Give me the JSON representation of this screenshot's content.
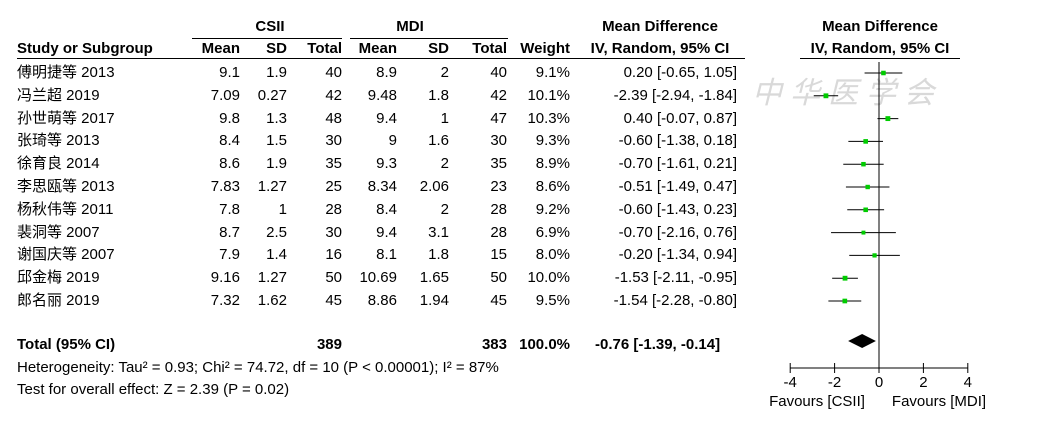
{
  "headers": {
    "group1": "CSII",
    "group2": "MDI",
    "study": "Study or Subgroup",
    "mean": "Mean",
    "sd": "SD",
    "total": "Total",
    "weight": "Weight",
    "md_top": "Mean Difference",
    "md_sub": "IV, Random, 95% CI",
    "plot_top": "Mean Difference",
    "plot_sub": "IV, Random, 95% CI"
  },
  "rows": [
    {
      "study": "傅明捷等 2013",
      "m1": "9.1",
      "sd1": "1.9",
      "n1": "40",
      "m2": "8.9",
      "sd2": "2",
      "n2": "40",
      "weight": "9.1%",
      "ci": "0.20 [-0.65, 1.05]"
    },
    {
      "study": "冯兰超 2019",
      "m1": "7.09",
      "sd1": "0.27",
      "n1": "42",
      "m2": "9.48",
      "sd2": "1.8",
      "n2": "42",
      "weight": "10.1%",
      "ci": "-2.39 [-2.94, -1.84]"
    },
    {
      "study": "孙世萌等 2017",
      "m1": "9.8",
      "sd1": "1.3",
      "n1": "48",
      "m2": "9.4",
      "sd2": "1",
      "n2": "47",
      "weight": "10.3%",
      "ci": "0.40 [-0.07, 0.87]"
    },
    {
      "study": "张琦等 2013",
      "m1": "8.4",
      "sd1": "1.5",
      "n1": "30",
      "m2": "9",
      "sd2": "1.6",
      "n2": "30",
      "weight": "9.3%",
      "ci": "-0.60 [-1.38, 0.18]"
    },
    {
      "study": "徐育良 2014",
      "m1": "8.6",
      "sd1": "1.9",
      "n1": "35",
      "m2": "9.3",
      "sd2": "2",
      "n2": "35",
      "weight": "8.9%",
      "ci": "-0.70 [-1.61, 0.21]"
    },
    {
      "study": "李思瓯等 2013",
      "m1": "7.83",
      "sd1": "1.27",
      "n1": "25",
      "m2": "8.34",
      "sd2": "2.06",
      "n2": "23",
      "weight": "8.6%",
      "ci": "-0.51 [-1.49, 0.47]"
    },
    {
      "study": "杨秋伟等 2011",
      "m1": "7.8",
      "sd1": "1",
      "n1": "28",
      "m2": "8.4",
      "sd2": "2",
      "n2": "28",
      "weight": "9.2%",
      "ci": "-0.60 [-1.43, 0.23]"
    },
    {
      "study": "裴洞等 2007",
      "m1": "8.7",
      "sd1": "2.5",
      "n1": "30",
      "m2": "9.4",
      "sd2": "3.1",
      "n2": "28",
      "weight": "6.9%",
      "ci": "-0.70 [-2.16, 0.76]"
    },
    {
      "study": "谢国庆等 2007",
      "m1": "7.9",
      "sd1": "1.4",
      "n1": "16",
      "m2": "8.1",
      "sd2": "1.8",
      "n2": "15",
      "weight": "8.0%",
      "ci": "-0.20 [-1.34, 0.94]"
    },
    {
      "study": "邱金梅 2019",
      "m1": "9.16",
      "sd1": "1.27",
      "n1": "50",
      "m2": "10.69",
      "sd2": "1.65",
      "n2": "50",
      "weight": "10.0%",
      "ci": "-1.53 [-2.11, -0.95]"
    },
    {
      "study": "郎名丽 2019",
      "m1": "7.32",
      "sd1": "1.62",
      "n1": "45",
      "m2": "8.86",
      "sd2": "1.94",
      "n2": "45",
      "weight": "9.5%",
      "ci": "-1.54 [-2.28, -0.80]"
    }
  ],
  "total": {
    "label": "Total (95% CI)",
    "n1": "389",
    "n2": "383",
    "weight": "100.0%",
    "ci": "-0.76 [-1.39, -0.14]"
  },
  "heterogeneity": "Heterogeneity: Tau² = 0.93; Chi² = 74.72, df = 10 (P < 0.00001); I² = 87%",
  "overall_effect": "Test for overall effect: Z = 2.39 (P = 0.02)",
  "favours_left": "Favours [CSII]",
  "favours_right": "Favours [MDI]",
  "watermark": "中华医学会",
  "colors": {
    "marker": "#00cc00",
    "diamond": "#000000",
    "line": "#000000"
  },
  "chart_data": {
    "type": "forest",
    "xlim": [
      -4,
      4
    ],
    "xticks": [
      -4,
      -2,
      0,
      2,
      4
    ],
    "xtick_labels": [
      "-4",
      "-2",
      "0",
      "2",
      "4"
    ],
    "studies": [
      {
        "name": "傅明捷等 2013",
        "md": 0.2,
        "lo": -0.65,
        "hi": 1.05,
        "weight": 9.1
      },
      {
        "name": "冯兰超 2019",
        "md": -2.39,
        "lo": -2.94,
        "hi": -1.84,
        "weight": 10.1
      },
      {
        "name": "孙世萌等 2017",
        "md": 0.4,
        "lo": -0.07,
        "hi": 0.87,
        "weight": 10.3
      },
      {
        "name": "张琦等 2013",
        "md": -0.6,
        "lo": -1.38,
        "hi": 0.18,
        "weight": 9.3
      },
      {
        "name": "徐育良 2014",
        "md": -0.7,
        "lo": -1.61,
        "hi": 0.21,
        "weight": 8.9
      },
      {
        "name": "李思瓯等 2013",
        "md": -0.51,
        "lo": -1.49,
        "hi": 0.47,
        "weight": 8.6
      },
      {
        "name": "杨秋伟等 2011",
        "md": -0.6,
        "lo": -1.43,
        "hi": 0.23,
        "weight": 9.2
      },
      {
        "name": "裴洞等 2007",
        "md": -0.7,
        "lo": -2.16,
        "hi": 0.76,
        "weight": 6.9
      },
      {
        "name": "谢国庆等 2007",
        "md": -0.2,
        "lo": -1.34,
        "hi": 0.94,
        "weight": 8.0
      },
      {
        "name": "邱金梅 2019",
        "md": -1.53,
        "lo": -2.11,
        "hi": -0.95,
        "weight": 10.0
      },
      {
        "name": "郎名丽 2019",
        "md": -1.54,
        "lo": -2.28,
        "hi": -0.8,
        "weight": 9.5
      }
    ],
    "pooled": {
      "md": -0.76,
      "lo": -1.39,
      "hi": -0.14
    }
  }
}
